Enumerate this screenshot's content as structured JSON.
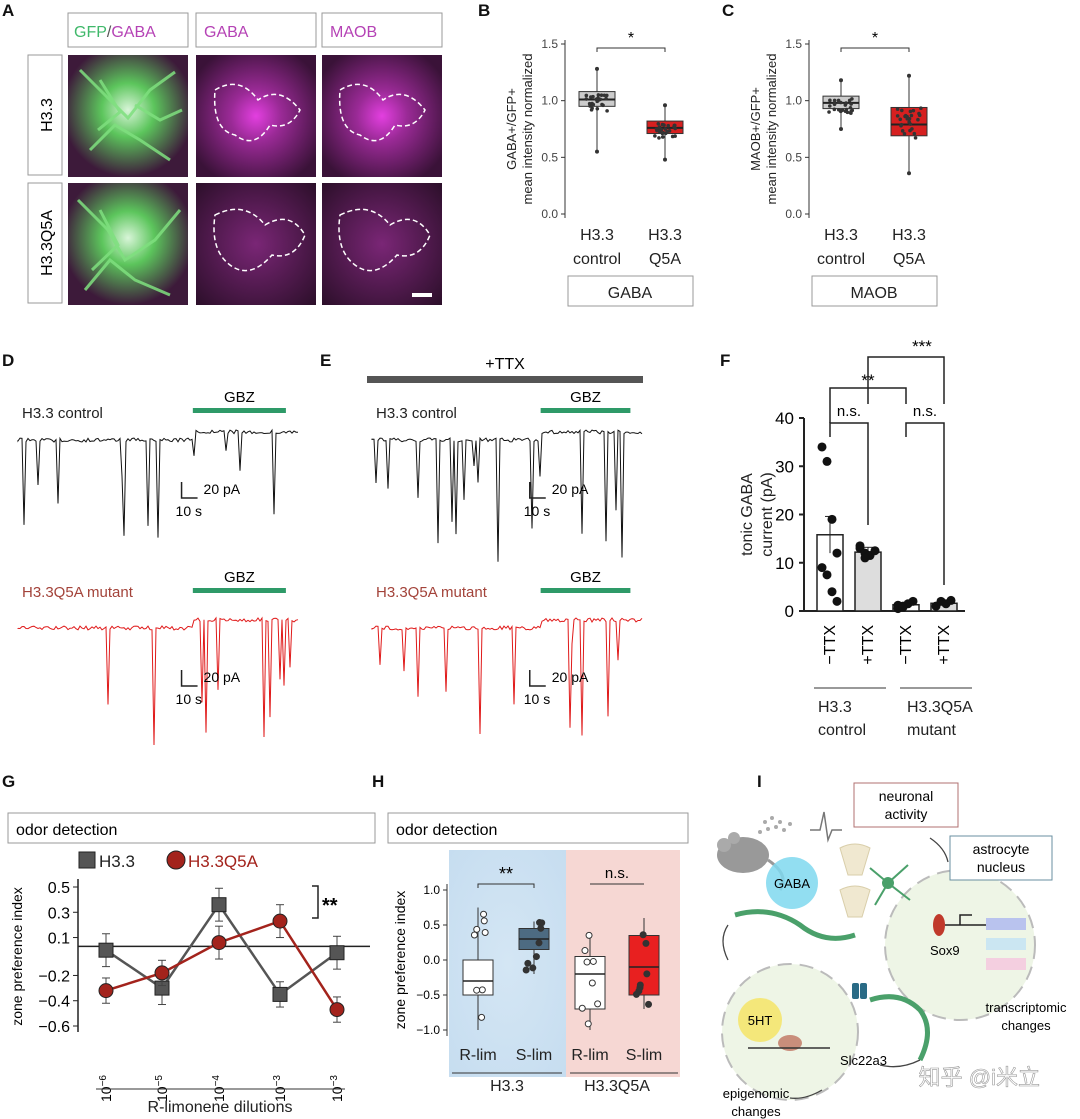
{
  "panels": {
    "A": {
      "letter": "A",
      "col_headers": [
        {
          "parts": [
            "GFP",
            "/",
            "GABA"
          ],
          "colors": [
            "#3fb86a",
            "#555",
            "#b542b5"
          ]
        },
        {
          "text": "GABA",
          "color": "#b542b5"
        },
        {
          "text": "MAOB",
          "color": "#b542b5"
        }
      ],
      "row_headers": [
        "H3.3",
        "H3.3Q5A"
      ]
    },
    "B": {
      "letter": "B",
      "chart_data": {
        "type": "box",
        "ylabel_lines": [
          "GABA+/GFP+",
          "mean intensity normalized"
        ],
        "ylim": [
          0,
          1.5
        ],
        "yticks": [
          "0.0",
          "0.5",
          "1.0",
          "1.5"
        ],
        "categories": [
          "H3.3 control",
          "H3.3 Q5A"
        ],
        "category_lines": [
          [
            "H3.3",
            "control"
          ],
          [
            "H3.3",
            "Q5A"
          ]
        ],
        "boxes": [
          {
            "q1": 0.95,
            "median": 1.01,
            "q3": 1.08,
            "min": 0.55,
            "max": 1.28,
            "color": "#cccccc"
          },
          {
            "q1": 0.71,
            "median": 0.76,
            "q3": 0.82,
            "min": 0.48,
            "max": 0.96,
            "color": "#d62020"
          }
        ],
        "significance": "*",
        "group_label": "GABA"
      }
    },
    "C": {
      "letter": "C",
      "chart_data": {
        "type": "box",
        "ylabel_lines": [
          "MAOB+/GFP+",
          "mean intensity normalized"
        ],
        "ylim": [
          0,
          1.5
        ],
        "yticks": [
          "0.0",
          "0.5",
          "1.0",
          "1.5"
        ],
        "categories": [
          "H3.3 control",
          "H3.3 Q5A"
        ],
        "category_lines": [
          [
            "H3.3",
            "control"
          ],
          [
            "H3.3",
            "Q5A"
          ]
        ],
        "boxes": [
          {
            "q1": 0.93,
            "median": 0.98,
            "q3": 1.04,
            "min": 0.75,
            "max": 1.18,
            "color": "#cccccc"
          },
          {
            "q1": 0.69,
            "median": 0.79,
            "q3": 0.94,
            "min": 0.36,
            "max": 1.22,
            "color": "#d62020"
          }
        ],
        "significance": "*",
        "group_label": "MAOB"
      }
    },
    "D": {
      "letter": "D",
      "traces": [
        {
          "label": "H3.3 control",
          "color": "#111111",
          "drug": "GBZ"
        },
        {
          "label": "H3.3Q5A mutant",
          "color": "#e01a1a",
          "drug": "GBZ"
        }
      ],
      "scale_amp": "20 pA",
      "scale_time": "10 s"
    },
    "E": {
      "letter": "E",
      "ttx_label": "+TTX",
      "traces": [
        {
          "label": "H3.3 control",
          "color": "#111111",
          "drug": "GBZ"
        },
        {
          "label": "H3.3Q5A mutant",
          "color": "#e01a1a",
          "drug": "GBZ"
        }
      ],
      "scale_amp": "20 pA",
      "scale_time": "10 s"
    },
    "F": {
      "letter": "F",
      "chart_data": {
        "type": "bar",
        "ylabel_lines": [
          "tonic GABA",
          "current (pA)"
        ],
        "ylim": [
          0,
          40
        ],
        "yticks": [
          "0",
          "10",
          "20",
          "30",
          "40"
        ],
        "categories": [
          "−TTX",
          "+TTX",
          "−TTX",
          "+TTX"
        ],
        "values": [
          15.8,
          12.2,
          1.3,
          1.6
        ],
        "errors": [
          3.8,
          1.0,
          0.4,
          0.4
        ],
        "bar_colors": [
          "#ffffff",
          "#dddddd",
          "#ffffff",
          "#dddddd"
        ],
        "points": [
          [
            34.0,
            31.0,
            19.0,
            12.0,
            9.0,
            7.5,
            4.0,
            2.0
          ],
          [
            13.0,
            12.0,
            11.5,
            12.5,
            13.5,
            11.0
          ],
          [
            0.5,
            1.0,
            1.5,
            2.0,
            1.2,
            0.8
          ],
          [
            1.0,
            2.0,
            1.5,
            2.2
          ]
        ],
        "groups": [
          [
            "H3.3",
            "control"
          ],
          [
            "H3.3Q5A",
            "mutant"
          ]
        ],
        "within_sig": [
          "n.s.",
          "n.s."
        ],
        "between_sig": [
          "**",
          "***"
        ]
      }
    },
    "G": {
      "letter": "G",
      "banner": "odor detection",
      "chart_data": {
        "type": "line",
        "ylabel": "zone preference index",
        "xlabel": "R-limonene dilutions",
        "yticks": [
          "0.5",
          "0.3",
          "0.1",
          "−0.2",
          "−0.4",
          "−0.6"
        ],
        "x_ticks": [
          [
            "10",
            "−6"
          ],
          [
            "10",
            "−5"
          ],
          [
            "10",
            "−4"
          ],
          [
            "10",
            "−3"
          ],
          [
            "10",
            "−3"
          ]
        ],
        "ylim": [
          -0.6,
          0.5
        ],
        "series": [
          {
            "name": "H3.3",
            "values": [
              0.0,
              -0.3,
              0.36,
              -0.35,
              -0.02
            ],
            "errors": [
              0.13,
              0.13,
              0.13,
              0.1,
              0.13
            ],
            "color": "#555555",
            "marker": "square"
          },
          {
            "name": "H3.3Q5A",
            "values": [
              -0.32,
              -0.18,
              0.06,
              0.23,
              -0.47
            ],
            "errors": [
              0.1,
              0.1,
              0.13,
              0.13,
              0.1
            ],
            "color": "#a3231c",
            "marker": "circle"
          }
        ],
        "significance": "**"
      }
    },
    "H": {
      "letter": "H",
      "banner": "odor detection",
      "chart_data": {
        "type": "box",
        "ylabel": "zone preference index",
        "ylim": [
          -1.0,
          1.0
        ],
        "yticks": [
          "1.0",
          "0.5",
          "0.0",
          "−0.5",
          "−1.0"
        ],
        "categories": [
          "R-lim",
          "S-lim",
          "R-lim",
          "S-lim"
        ],
        "boxes": [
          {
            "q1": -0.5,
            "median": -0.3,
            "q3": 0.0,
            "min": -1.0,
            "max": 0.75,
            "color": "#ffffff"
          },
          {
            "q1": 0.15,
            "median": 0.3,
            "q3": 0.45,
            "min": -0.2,
            "max": 0.55,
            "color": "#4d6b82"
          },
          {
            "q1": -0.7,
            "median": -0.2,
            "q3": 0.05,
            "min": -1.0,
            "max": 0.4,
            "color": "#ffffff"
          },
          {
            "q1": -0.5,
            "median": -0.1,
            "q3": 0.35,
            "min": -0.7,
            "max": 0.6,
            "color": "#e82020"
          }
        ],
        "groups": [
          "H3.3",
          "H3.3Q5A"
        ],
        "significance": [
          "**",
          "n.s."
        ]
      }
    },
    "I": {
      "letter": "I",
      "labels": {
        "neuronal_activity": [
          "neuronal",
          "activity"
        ],
        "astrocyte_nucleus": [
          "astrocyte",
          "nucleus"
        ],
        "gaba": "GABA",
        "sox9": "Sox9",
        "ht5": "5HT",
        "transcriptomic": [
          "transcriptomic",
          "changes"
        ],
        "slc": "Slc22a3",
        "epigenomic": [
          "epigenomic",
          "changes"
        ]
      },
      "watermark": "知乎 @i米立"
    }
  }
}
